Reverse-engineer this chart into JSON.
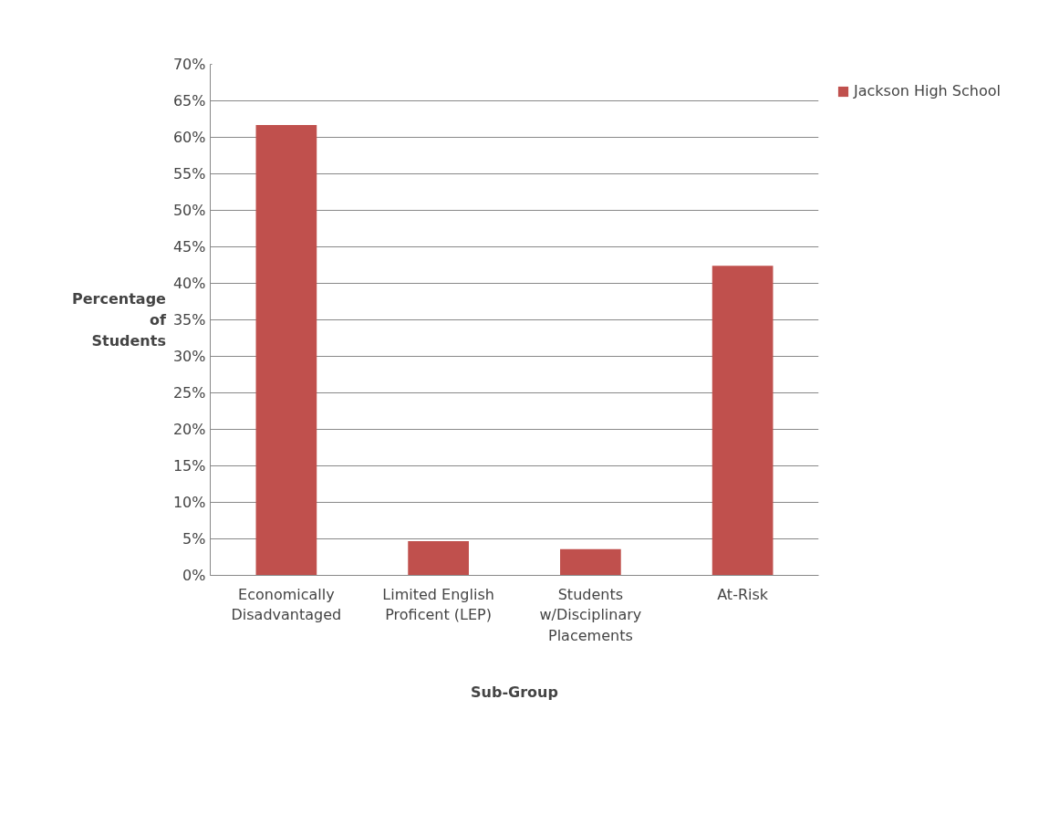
{
  "chart_data": {
    "type": "bar",
    "xlabel": "Sub-Group",
    "ylabel": "Percentage of Students",
    "categories": [
      "Economically Disadvantaged",
      "Limited English Proficent (LEP)",
      "Students w/Disciplinary Placements",
      "At-Risk"
    ],
    "series": [
      {
        "name": "Jackson High School",
        "color": "#c0504d",
        "values": [
          61.7,
          4.7,
          3.6,
          42.4
        ]
      }
    ],
    "ylim": [
      0,
      70
    ],
    "yticks": [
      {
        "value": 0,
        "label": "0%"
      },
      {
        "value": 5,
        "label": "5%"
      },
      {
        "value": 10,
        "label": "10%"
      },
      {
        "value": 15,
        "label": "15%"
      },
      {
        "value": 20,
        "label": "20%"
      },
      {
        "value": 25,
        "label": "25%"
      },
      {
        "value": 30,
        "label": "30%"
      },
      {
        "value": 35,
        "label": "35%"
      },
      {
        "value": 40,
        "label": "40%"
      },
      {
        "value": 45,
        "label": "45%"
      },
      {
        "value": 50,
        "label": "50%"
      },
      {
        "value": 55,
        "label": "55%"
      },
      {
        "value": 60,
        "label": "60%"
      },
      {
        "value": 65,
        "label": "65%"
      },
      {
        "value": 70,
        "label": "70%"
      }
    ],
    "grid": "y",
    "legend": "right"
  }
}
